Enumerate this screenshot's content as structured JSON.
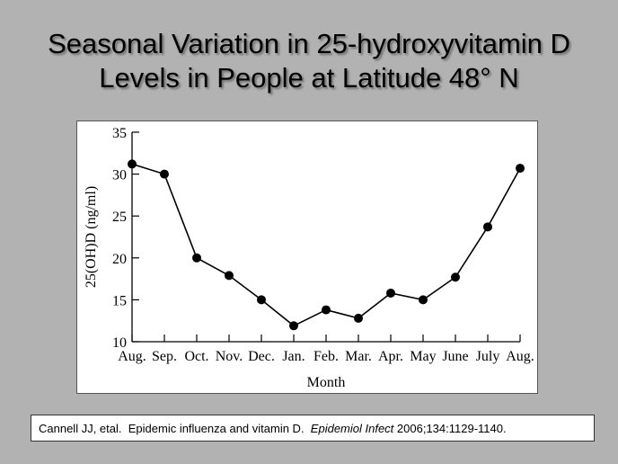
{
  "slide": {
    "title_line1": "Seasonal Variation in 25-hydroxyvitamin D",
    "title_line2": "Levels in People at Latitude 48° N"
  },
  "citation": {
    "authors": "Cannell JJ, etal.",
    "article": "Epidemic influenza and vitamin D.",
    "journal": "Epidemiol Infect",
    "details": "2006;134:1129-1140."
  },
  "chart_data": {
    "type": "line",
    "title": "",
    "xlabel": "Month",
    "ylabel": "25(OH)D (ng/ml)",
    "categories": [
      "Aug.",
      "Sep.",
      "Oct.",
      "Nov.",
      "Dec.",
      "Jan.",
      "Feb.",
      "Mar.",
      "Apr.",
      "May",
      "June",
      "July",
      "Aug."
    ],
    "values": [
      31.2,
      30.0,
      20.0,
      17.9,
      15.0,
      11.9,
      13.8,
      12.8,
      15.8,
      15.0,
      17.7,
      23.7,
      30.7
    ],
    "ylim": [
      10,
      35
    ],
    "yticks": [
      10,
      15,
      20,
      25,
      30,
      35
    ],
    "grid": false,
    "legend": "none",
    "line_color": "#000000",
    "marker": "filled-circle"
  }
}
